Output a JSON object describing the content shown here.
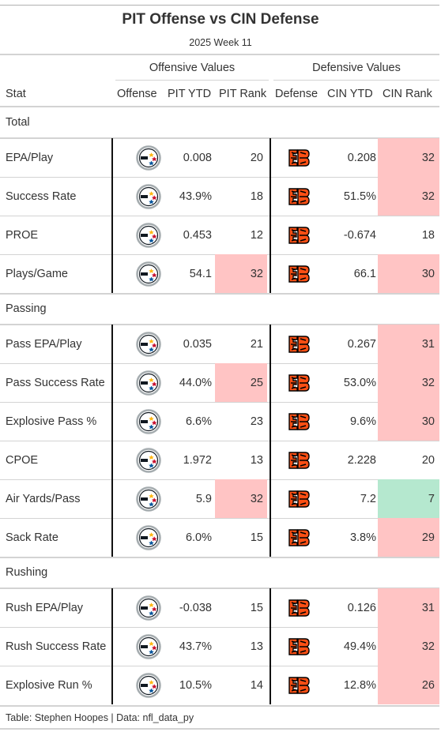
{
  "title": "PIT Offense vs CIN Defense",
  "subtitle": "2025 Week 11",
  "spanners": {
    "offense": "Offensive Values",
    "defense": "Defensive Values"
  },
  "columns": {
    "stat": "Stat",
    "offense": "Offense",
    "off_ytd": "PIT YTD",
    "off_rank": "PIT Rank",
    "defense": "Defense",
    "def_ytd": "CIN YTD",
    "def_rank": "CIN Rank"
  },
  "offense_team_icon": "steelers-logo-icon",
  "defense_team_icon": "bengals-logo-icon",
  "highlight_colors": {
    "bad": "#ffc4c4",
    "good": "#b5e8cf"
  },
  "groups": [
    {
      "name": "Total",
      "rows": [
        {
          "stat": "EPA/Play",
          "off_ytd": "0.008",
          "off_rank": "20",
          "off_hl": "",
          "def_ytd": "0.208",
          "def_rank": "32",
          "def_hl": "bad"
        },
        {
          "stat": "Success Rate",
          "off_ytd": "43.9%",
          "off_rank": "18",
          "off_hl": "",
          "def_ytd": "51.5%",
          "def_rank": "32",
          "def_hl": "bad"
        },
        {
          "stat": "PROE",
          "off_ytd": "0.453",
          "off_rank": "12",
          "off_hl": "",
          "def_ytd": "-0.674",
          "def_rank": "18",
          "def_hl": ""
        },
        {
          "stat": "Plays/Game",
          "off_ytd": "54.1",
          "off_rank": "32",
          "off_hl": "bad",
          "def_ytd": "66.1",
          "def_rank": "30",
          "def_hl": "bad"
        }
      ]
    },
    {
      "name": "Passing",
      "rows": [
        {
          "stat": "Pass EPA/Play",
          "off_ytd": "0.035",
          "off_rank": "21",
          "off_hl": "",
          "def_ytd": "0.267",
          "def_rank": "31",
          "def_hl": "bad"
        },
        {
          "stat": "Pass Success Rate",
          "off_ytd": "44.0%",
          "off_rank": "25",
          "off_hl": "bad",
          "def_ytd": "53.0%",
          "def_rank": "32",
          "def_hl": "bad"
        },
        {
          "stat": "Explosive Pass %",
          "off_ytd": "6.6%",
          "off_rank": "23",
          "off_hl": "",
          "def_ytd": "9.6%",
          "def_rank": "30",
          "def_hl": "bad"
        },
        {
          "stat": "CPOE",
          "off_ytd": "1.972",
          "off_rank": "13",
          "off_hl": "",
          "def_ytd": "2.228",
          "def_rank": "20",
          "def_hl": ""
        },
        {
          "stat": "Air Yards/Pass",
          "off_ytd": "5.9",
          "off_rank": "32",
          "off_hl": "bad",
          "def_ytd": "7.2",
          "def_rank": "7",
          "def_hl": "good"
        },
        {
          "stat": "Sack Rate",
          "off_ytd": "6.0%",
          "off_rank": "15",
          "off_hl": "",
          "def_ytd": "3.8%",
          "def_rank": "29",
          "def_hl": "bad"
        }
      ]
    },
    {
      "name": "Rushing",
      "rows": [
        {
          "stat": "Rush EPA/Play",
          "off_ytd": "-0.038",
          "off_rank": "15",
          "off_hl": "",
          "def_ytd": "0.126",
          "def_rank": "31",
          "def_hl": "bad"
        },
        {
          "stat": "Rush Success Rate",
          "off_ytd": "43.7%",
          "off_rank": "13",
          "off_hl": "",
          "def_ytd": "49.4%",
          "def_rank": "32",
          "def_hl": "bad"
        },
        {
          "stat": "Explosive Run %",
          "off_ytd": "10.5%",
          "off_rank": "14",
          "off_hl": "",
          "def_ytd": "12.8%",
          "def_rank": "26",
          "def_hl": "bad"
        }
      ]
    }
  ],
  "footer": "Table: Stephen Hoopes | Data: nfl_data_py"
}
